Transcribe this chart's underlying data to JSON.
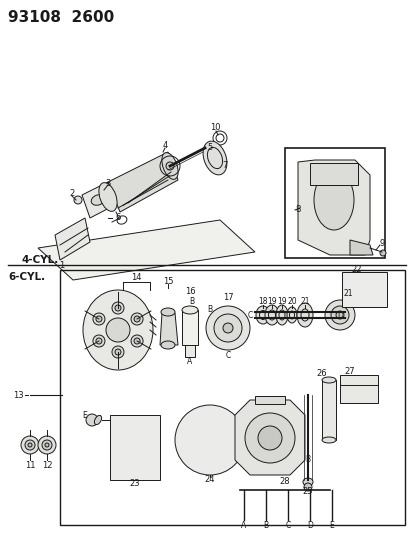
{
  "title": "93108  2600",
  "bg": "#f5f5f0",
  "lc": "#1a1a1a",
  "fig_w": 4.14,
  "fig_h": 5.33,
  "dpi": 100,
  "label_4cyl": "4-CYL.",
  "label_6cyl": "6-CYL."
}
